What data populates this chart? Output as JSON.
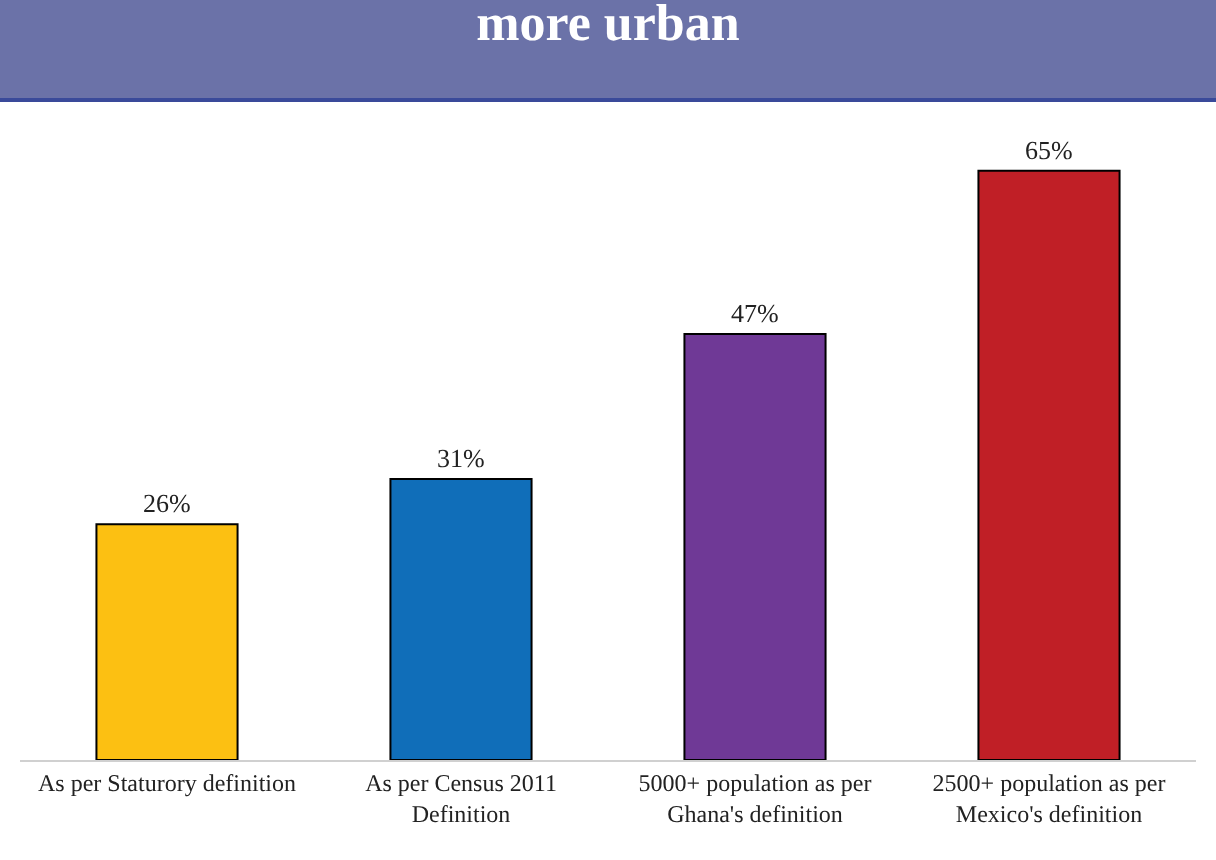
{
  "chart_data": {
    "type": "bar",
    "title": "more urban",
    "categories": [
      "As per Staturory definition",
      "As per Census 2011 Definition",
      "5000+ population as per Ghana's definition",
      "2500+ population as per Mexico's definition"
    ],
    "values": [
      26,
      31,
      47,
      65
    ],
    "colors": [
      "#fcc012",
      "#106eb9",
      "#6f3996",
      "#c01f26"
    ],
    "value_labels": [
      "26%",
      "31%",
      "47%",
      "65%"
    ],
    "grid": false,
    "legend": false
  }
}
